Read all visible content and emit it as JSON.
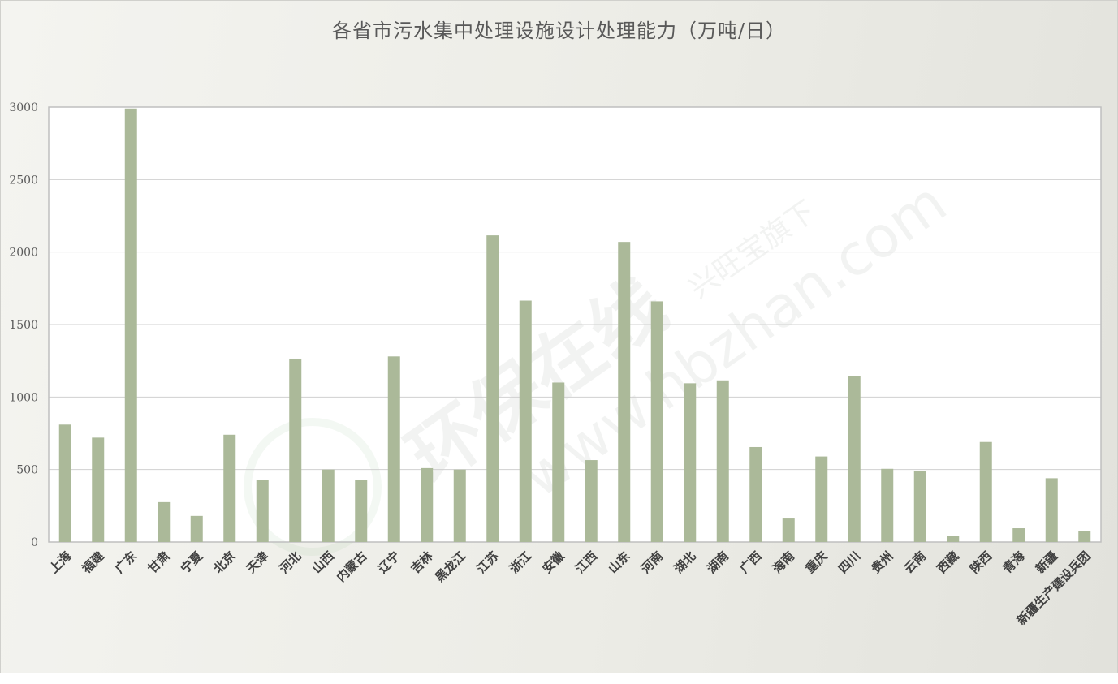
{
  "chart_data": {
    "type": "bar",
    "title": "各省市污水集中处理设施设计处理能力（万吨/日）",
    "xlabel": "",
    "ylabel": "",
    "ylim": [
      0,
      3000
    ],
    "yticks": [
      0,
      500,
      1000,
      1500,
      2000,
      2500,
      3000
    ],
    "grid": true,
    "legend": "none",
    "categories": [
      "上海",
      "福建",
      "广东",
      "甘肃",
      "宁夏",
      "北京",
      "天津",
      "河北",
      "山西",
      "内蒙古",
      "辽宁",
      "吉林",
      "黑龙江",
      "江苏",
      "浙江",
      "安徽",
      "江西",
      "山东",
      "河南",
      "湖北",
      "湖南",
      "广西",
      "海南",
      "重庆",
      "四川",
      "贵州",
      "云南",
      "西藏",
      "陕西",
      "青海",
      "新疆",
      "新疆生产建设兵团"
    ],
    "values": [
      810,
      720,
      2990,
      275,
      180,
      740,
      430,
      1265,
      500,
      430,
      1280,
      510,
      500,
      2115,
      1665,
      1100,
      565,
      2070,
      1660,
      1095,
      1115,
      655,
      162,
      590,
      1147,
      505,
      490,
      40,
      690,
      95,
      440,
      75
    ],
    "colors": {
      "bar": "#abb999",
      "plot_bg": "#ffffff",
      "grid": "#d0d0d0"
    }
  },
  "watermark": {
    "logo_text": "环保在线",
    "sub_text": "兴旺宝旗下",
    "url": "www.hbzhan.com"
  }
}
